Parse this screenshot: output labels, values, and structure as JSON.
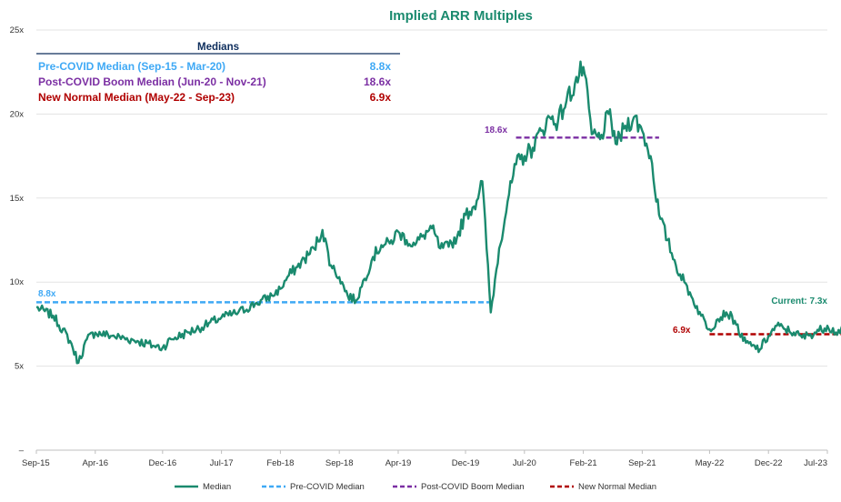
{
  "chart_data": {
    "type": "line",
    "title": "Implied ARR Multiples",
    "xlabel": "",
    "ylabel": "",
    "x_ticks": [
      "Sep-15",
      "Apr-16",
      "Dec-16",
      "Jul-17",
      "Feb-18",
      "Sep-18",
      "Apr-19",
      "Dec-19",
      "Jul-20",
      "Feb-21",
      "Sep-21",
      "May-22",
      "Dec-22",
      "Jul-23"
    ],
    "y_ticks": [
      "–",
      "5x",
      "10x",
      "15x",
      "20x",
      "25x"
    ],
    "ylim": [
      0,
      25
    ],
    "grid": true,
    "series": [
      {
        "name": "Median",
        "color": "#1a8a6e",
        "x": [
          "Sep-15",
          "Nov-15",
          "Jan-16",
          "Feb-16",
          "Mar-16",
          "Apr-16",
          "Jun-16",
          "Sep-16",
          "Nov-16",
          "Dec-16",
          "Jan-17",
          "Mar-17",
          "May-17",
          "Jul-17",
          "Sep-17",
          "Nov-17",
          "Jan-18",
          "Feb-18",
          "Mar-18",
          "Apr-18",
          "Jun-18",
          "Jul-18",
          "Aug-18",
          "Sep-18",
          "Oct-18",
          "Nov-18",
          "Dec-18",
          "Jan-19",
          "Feb-19",
          "Mar-19",
          "Apr-19",
          "May-19",
          "Jun-19",
          "Jul-19",
          "Aug-19",
          "Sep-19",
          "Oct-19",
          "Nov-19",
          "Dec-19",
          "Jan-20",
          "Feb-20",
          "Mar-20",
          "Apr-20",
          "May-20",
          "Jun-20",
          "Jul-20",
          "Aug-20",
          "Sep-20",
          "Oct-20",
          "Nov-20",
          "Dec-20",
          "Jan-21",
          "Feb-21",
          "Mar-21",
          "Apr-21",
          "May-21",
          "Jun-21",
          "Jul-21",
          "Aug-21",
          "Sep-21",
          "Oct-21",
          "Nov-21",
          "Dec-21",
          "Jan-22",
          "Feb-22",
          "Mar-22",
          "Apr-22",
          "May-22",
          "Jun-22",
          "Jul-22",
          "Aug-22",
          "Sep-22",
          "Oct-22",
          "Nov-22",
          "Dec-22",
          "Jan-23",
          "Feb-23",
          "Mar-23",
          "Apr-23",
          "May-23",
          "Jun-23",
          "Jul-23",
          "Aug-23",
          "Sep-23"
        ],
        "values": [
          8.5,
          8.0,
          6.5,
          5.2,
          6.6,
          7.0,
          6.8,
          6.5,
          6.2,
          6.1,
          6.6,
          7.0,
          7.4,
          7.9,
          8.2,
          8.7,
          9.2,
          9.6,
          10.4,
          10.9,
          12.0,
          13.1,
          11.0,
          10.3,
          9.2,
          8.9,
          10.2,
          11.5,
          12.2,
          12.3,
          13.0,
          12.5,
          12.2,
          12.8,
          13.2,
          12.0,
          12.1,
          12.7,
          14.0,
          14.5,
          16.0,
          8.2,
          12.0,
          14.8,
          17.0,
          17.5,
          18.0,
          19.0,
          19.8,
          19.6,
          20.8,
          21.8,
          22.8,
          18.8,
          18.5,
          20.0,
          18.2,
          19.3,
          19.8,
          19.0,
          17.5,
          14.0,
          12.5,
          11.0,
          10.0,
          9.0,
          8.0,
          7.2,
          7.8,
          8.2,
          7.7,
          6.5,
          6.2,
          6.0,
          6.8,
          7.4,
          7.2,
          7.0,
          6.7,
          6.9,
          7.1,
          7.4,
          7.0,
          7.3
        ]
      },
      {
        "name": "Pre-COVID Median",
        "color": "#3fa9f5",
        "x_range": [
          "Sep-15",
          "Mar-20"
        ],
        "value": 8.8
      },
      {
        "name": "Post-COVID Boom Median",
        "color": "#7b2fa3",
        "x_range": [
          "Jun-20",
          "Nov-21"
        ],
        "value": 18.6
      },
      {
        "name": "New Normal Median",
        "color": "#b00000",
        "x_range": [
          "May-22",
          "Sep-23"
        ],
        "value": 6.9
      }
    ],
    "annotations": [
      {
        "text": "8.8x",
        "color": "#3fa9f5"
      },
      {
        "text": "18.6x",
        "color": "#7b2fa3"
      },
      {
        "text": "6.9x",
        "color": "#b00000"
      },
      {
        "text": "Current: 7.3x",
        "color": "#1a8a6e"
      }
    ],
    "medians_table": {
      "title": "Medians",
      "rows": [
        {
          "label": "Pre-COVID Median (Sep-15 - Mar-20)",
          "value": "8.8x",
          "color": "#3fa9f5"
        },
        {
          "label": "Post-COVID Boom Median (Jun-20 - Nov-21)",
          "value": "18.6x",
          "color": "#7b2fa3"
        },
        {
          "label": "New Normal Median (May-22 - Sep-23)",
          "value": "6.9x",
          "color": "#b00000"
        }
      ]
    },
    "legend": {
      "placement": "bottom",
      "items": [
        "Median",
        "Pre-COVID Median",
        "Post-COVID Boom Median",
        "New Normal Median"
      ]
    }
  }
}
